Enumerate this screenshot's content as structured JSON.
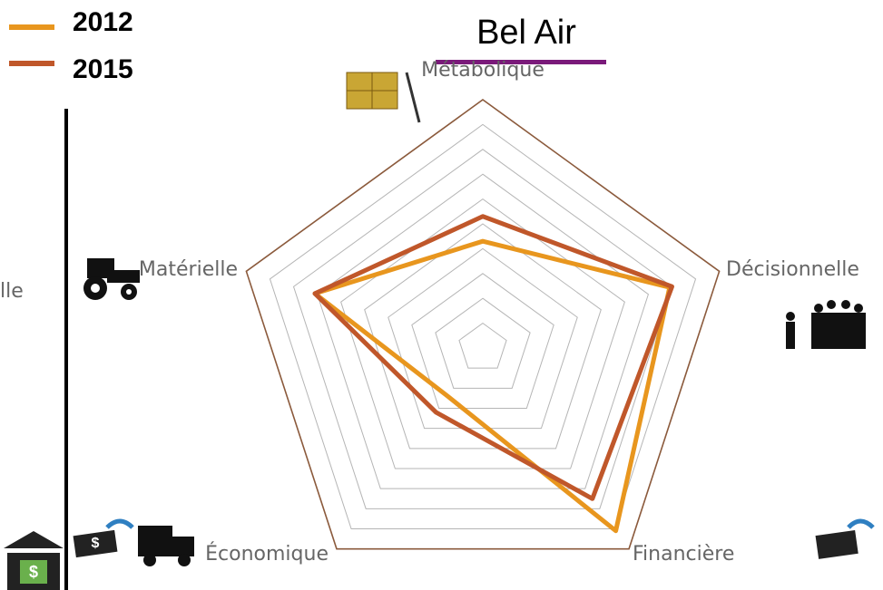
{
  "chart_data": {
    "type": "radar",
    "title": "Bel Air",
    "axes": [
      "Métabolique",
      "Décisionnelle",
      "Financière",
      "Économique",
      "Matérielle"
    ],
    "series": [
      {
        "name": "2012",
        "color": "#e8961e",
        "values": [
          4.3,
          7.9,
          9.1,
          2.4,
          7.1
        ]
      },
      {
        "name": "2015",
        "color": "#c0572a",
        "values": [
          5.3,
          8.0,
          7.5,
          3.2,
          7.1
        ]
      }
    ],
    "rlim": [
      0,
      10
    ],
    "rticks": [
      1,
      2,
      3,
      4,
      5,
      6,
      7,
      8,
      9,
      10
    ],
    "grid": true,
    "legend": "upper left",
    "fragments": [
      "lle"
    ]
  }
}
